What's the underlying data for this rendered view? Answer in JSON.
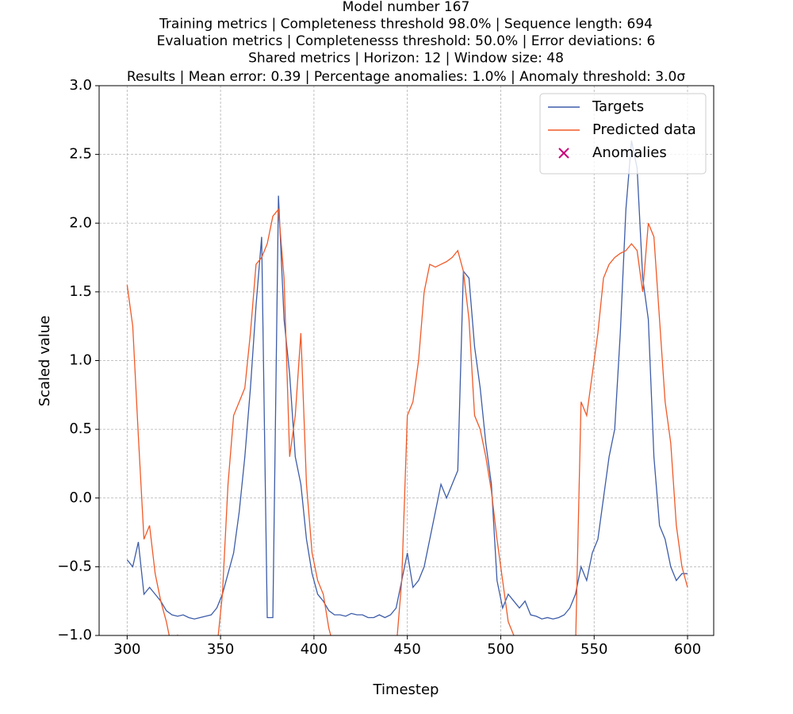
{
  "chart_data": {
    "type": "line",
    "title_lines": [
      "Model number 167",
      "Training metrics | Completeness threshold 98.0% | Sequence length: 694",
      "Evaluation metrics | Completenesss threshold: 50.0% | Error deviations: 6",
      "Shared metrics | Horizon: 12 | Window size: 48",
      "Results | Mean error: 0.39 | Percentage anomalies: 1.0% | Anomaly threshold: 3.0σ"
    ],
    "xlabel": "Timestep",
    "ylabel": "Scaled value",
    "xlim": [
      285,
      614
    ],
    "xticks": [
      300,
      350,
      400,
      450,
      500,
      550,
      600
    ],
    "ylim": [
      -1,
      3
    ],
    "yticks": [
      {
        "value": -1,
        "label": "−1.0"
      },
      {
        "value": -0.5,
        "label": "−0.5"
      },
      {
        "value": 0,
        "label": "0.0"
      },
      {
        "value": 0.5,
        "label": "0.5"
      },
      {
        "value": 1,
        "label": "1.0"
      },
      {
        "value": 1.5,
        "label": "1.5"
      },
      {
        "value": 2,
        "label": "2.0"
      },
      {
        "value": 2.5,
        "label": "2.5"
      },
      {
        "value": 3,
        "label": "3.0"
      }
    ],
    "grid": true,
    "legend": "upper right",
    "x": [
      300,
      303,
      306,
      309,
      312,
      315,
      318,
      321,
      324,
      327,
      330,
      333,
      336,
      339,
      342,
      345,
      348,
      351,
      354,
      357,
      360,
      363,
      366,
      369,
      372,
      375,
      378,
      381,
      384,
      387,
      390,
      393,
      396,
      399,
      402,
      405,
      408,
      411,
      414,
      417,
      420,
      423,
      426,
      429,
      432,
      435,
      438,
      441,
      444,
      447,
      450,
      453,
      456,
      459,
      462,
      465,
      468,
      471,
      474,
      477,
      480,
      483,
      486,
      489,
      492,
      495,
      498,
      501,
      504,
      507,
      510,
      513,
      516,
      519,
      522,
      525,
      528,
      531,
      534,
      537,
      540,
      543,
      546,
      549,
      552,
      555,
      558,
      561,
      564,
      567,
      570,
      573,
      576,
      579,
      582,
      585,
      588,
      591,
      594,
      597,
      600
    ],
    "series": [
      {
        "name": "Targets",
        "color": "#3d5ca8",
        "values": [
          -0.45,
          -0.5,
          -0.32,
          -0.7,
          -0.65,
          -0.7,
          -0.75,
          -0.82,
          -0.85,
          -0.86,
          -0.85,
          -0.87,
          -0.88,
          -0.87,
          -0.86,
          -0.85,
          -0.8,
          -0.7,
          -0.55,
          -0.4,
          -0.1,
          0.3,
          0.8,
          1.4,
          1.9,
          -0.87,
          -0.87,
          2.2,
          1.3,
          0.9,
          0.3,
          0.1,
          -0.3,
          -0.55,
          -0.7,
          -0.75,
          -0.82,
          -0.85,
          -0.85,
          -0.86,
          -0.84,
          -0.85,
          -0.85,
          -0.87,
          -0.87,
          -0.85,
          -0.87,
          -0.85,
          -0.8,
          -0.6,
          -0.4,
          -0.65,
          -0.6,
          -0.5,
          -0.3,
          -0.1,
          0.1,
          0.0,
          0.1,
          0.2,
          1.65,
          1.6,
          1.1,
          0.8,
          0.4,
          0.1,
          -0.6,
          -0.8,
          -0.7,
          -0.75,
          -0.8,
          -0.75,
          -0.85,
          -0.86,
          -0.88,
          -0.87,
          -0.88,
          -0.87,
          -0.85,
          -0.8,
          -0.7,
          -0.5,
          -0.6,
          -0.4,
          -0.3,
          0.0,
          0.3,
          0.5,
          1.2,
          2.1,
          2.6,
          2.4,
          1.6,
          1.3,
          0.3,
          -0.2,
          -0.3,
          -0.5,
          -0.6,
          -0.55,
          -0.55
        ]
      },
      {
        "name": "Predicted data",
        "color": "#f05a28",
        "values": [
          1.55,
          1.25,
          0.45,
          -0.3,
          -0.2,
          -0.55,
          -0.75,
          -0.9,
          -1.1,
          -1.0,
          -1.1,
          -1.1,
          -1.2,
          -1.1,
          -1.2,
          -1.1,
          -1.1,
          -0.7,
          0.1,
          0.6,
          0.7,
          0.8,
          1.2,
          1.7,
          1.75,
          1.85,
          2.05,
          2.1,
          1.6,
          0.3,
          0.6,
          1.2,
          0.1,
          -0.4,
          -0.6,
          -0.7,
          -0.95,
          -1.1,
          -1.15,
          -1.2,
          -1.1,
          -1.2,
          -1.2,
          -1.1,
          -1.2,
          -1.2,
          -1.3,
          -1.2,
          -1.1,
          -0.6,
          0.6,
          0.7,
          1.0,
          1.5,
          1.7,
          1.68,
          1.7,
          1.72,
          1.75,
          1.8,
          1.65,
          1.3,
          0.6,
          0.5,
          0.3,
          0.05,
          -0.3,
          -0.6,
          -0.9,
          -1.0,
          -1.1,
          -1.2,
          -1.1,
          -1.2,
          -1.2,
          -1.2,
          -1.2,
          -1.1,
          -1.2,
          -1.2,
          -1.1,
          0.7,
          0.6,
          0.9,
          1.2,
          1.6,
          1.7,
          1.75,
          1.78,
          1.8,
          1.85,
          1.8,
          1.5,
          2.0,
          1.9,
          1.3,
          0.7,
          0.4,
          -0.2,
          -0.5,
          -0.65
        ]
      }
    ],
    "anomalies": {
      "name": "Anomalies",
      "color": "#c8007a",
      "x": [],
      "values": []
    }
  }
}
